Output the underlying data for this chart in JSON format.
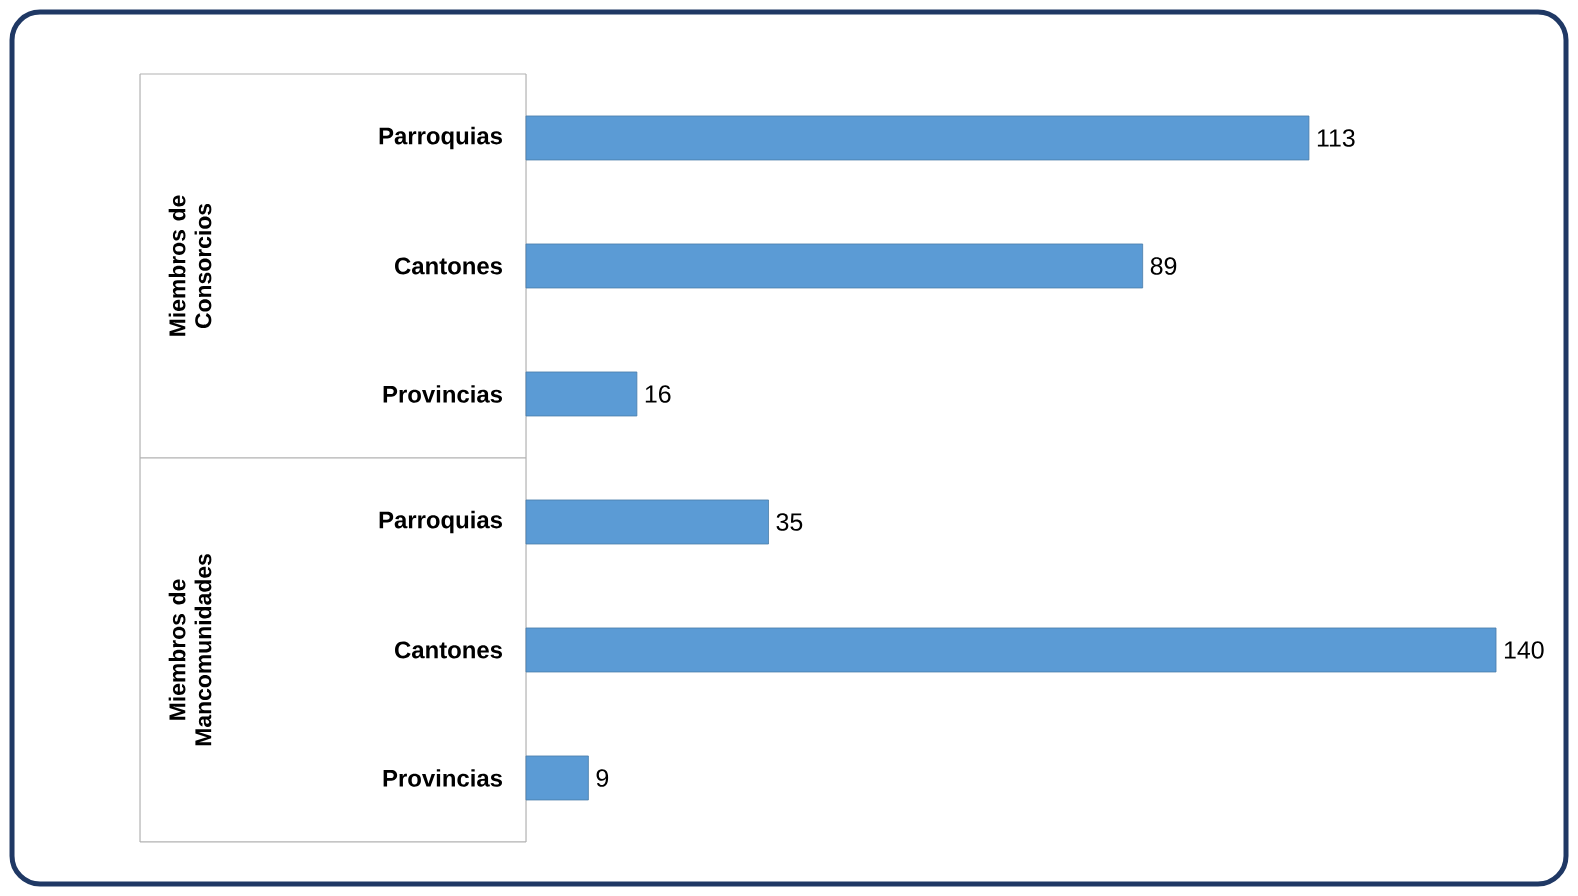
{
  "chart_data": {
    "type": "bar",
    "orientation": "horizontal",
    "categories": [
      "Parroquias",
      "Cantones",
      "Provincias",
      "Parroquias",
      "Cantones",
      "Provincias"
    ],
    "values": [
      113,
      89,
      16,
      35,
      140,
      9
    ],
    "color": "#5b9bd5",
    "data_labels": true,
    "annotations": [
      "Miembros de Consorcios",
      "Miembros de Mancomunidades"
    ]
  }
}
